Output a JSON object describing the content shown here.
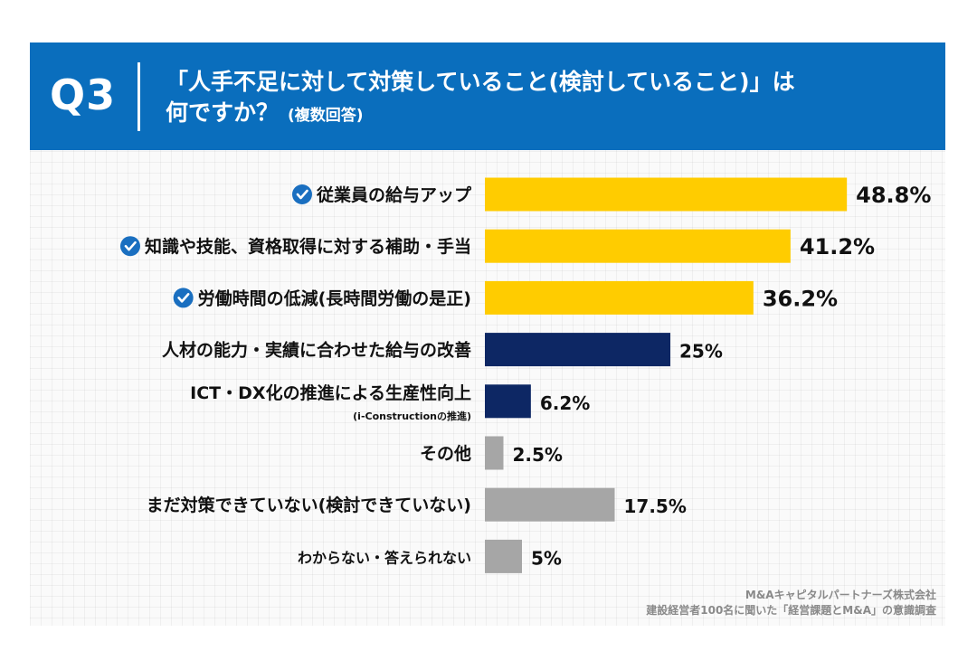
{
  "header": {
    "q_number": "Q3",
    "title_line1": "「人手不足に対して対策していること(検討していること)」は",
    "title_line2": "何ですか？",
    "title_note": "(複数回答)",
    "bg_color": "#0a6ebd"
  },
  "colors": {
    "highlight": "#ffcc00",
    "navy": "#0d2764",
    "gray": "#a6a6a6",
    "check": "#1a6fc0"
  },
  "chart_data": {
    "type": "bar",
    "orientation": "horizontal",
    "title": "「人手不足に対して対策していること(検討していること)」は何ですか？(複数回答)",
    "xlabel": "",
    "ylabel": "",
    "xlim": [
      0,
      50
    ],
    "categories": [
      "従業員の給与アップ",
      "知識や技能、資格取得に対する補助・手当",
      "労働時間の低減(長時間労働の是正)",
      "人材の能力・実績に合わせた給与の改善",
      "ICT・DX化の推進による生産性向上",
      "その他",
      "まだ対策できていない(検討できていない)",
      "わからない・答えられない"
    ],
    "sublabels": [
      "",
      "",
      "",
      "",
      "(i-Constructionの推進)",
      "",
      "",
      ""
    ],
    "values": [
      48.8,
      41.2,
      36.2,
      25,
      6.2,
      2.5,
      17.5,
      5
    ],
    "value_labels": [
      "48.8%",
      "41.2%",
      "36.2%",
      "25%",
      "6.2%",
      "2.5%",
      "17.5%",
      "5%"
    ],
    "bar_colors": [
      "highlight",
      "highlight",
      "highlight",
      "navy",
      "navy",
      "gray",
      "gray",
      "gray"
    ],
    "checked": [
      true,
      true,
      true,
      false,
      false,
      false,
      false,
      false
    ]
  },
  "source": {
    "line1": "M&Aキャピタルパートナーズ株式会社",
    "line2": "建設経営者100名に聞いた「経営課題とM&A」の意識調査"
  }
}
